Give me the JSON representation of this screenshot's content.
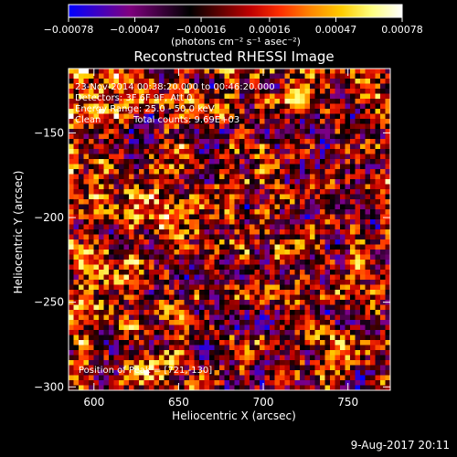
{
  "chart_data": {
    "type": "heatmap",
    "title": "Reconstructed RHESSI Image",
    "xlabel": "Heliocentric X (arcsec)",
    "ylabel": "Heliocentric Y (arcsec)",
    "xlim": [
      585,
      775
    ],
    "ylim": [
      -302,
      -112
    ],
    "xticks": [
      600,
      650,
      700,
      750
    ],
    "yticks": [
      -150,
      -200,
      -250,
      -300
    ],
    "xtick_labels": [
      "600",
      "650",
      "700",
      "750"
    ],
    "ytick_labels": [
      "−150",
      "−200",
      "−250",
      "−300"
    ],
    "colorbar": {
      "range": [
        -0.00078,
        0.00078
      ],
      "tick_values": [
        -0.00078,
        -0.00047,
        -0.00016,
        0.00016,
        0.00047,
        0.00078
      ],
      "tick_labels": [
        "−0.00078",
        "−0.00047",
        "−0.00016",
        "0.00016",
        "0.00047",
        "0.00078"
      ],
      "units_label": "(photons cm⁻² s⁻¹ asec⁻²)",
      "colormap": [
        "#0000ff",
        "#4000c0",
        "#800080",
        "#400040",
        "#000000",
        "#600000",
        "#c00000",
        "#ff3000",
        "#ff8800",
        "#ffcc00",
        "#ffff80",
        "#ffffff"
      ]
    },
    "annotations": {
      "time_range": "23-Nov-2014 00:38:20.000 to 00:46:20.000",
      "detectors": "Detectors: 3F 6F 9F, Att 0",
      "energy": "Energy Range: 25.0 - 50.0 keV",
      "method": "Clean",
      "total_counts": "Total counts: 9.69E+03",
      "peak": "Position of Peak = [721,-130]"
    },
    "peak_position": [
      721,
      -130
    ],
    "grid": false
  },
  "footer": {
    "date": "9-Aug-2017 20:11"
  }
}
